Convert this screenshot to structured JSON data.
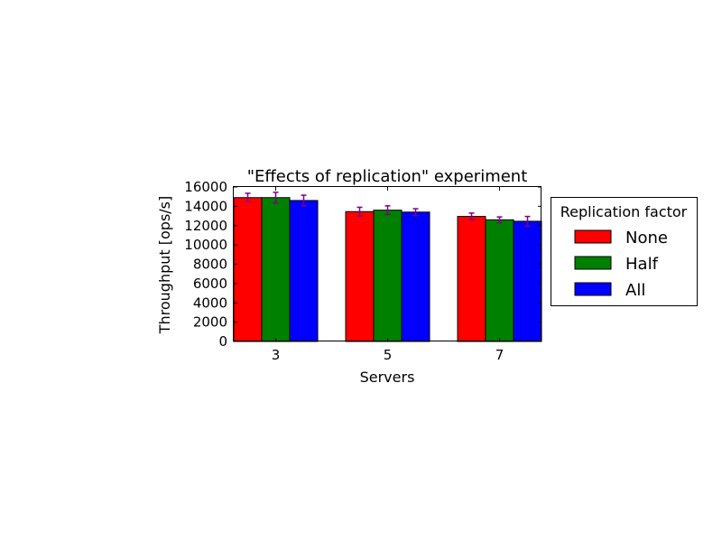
{
  "chart_data": {
    "type": "bar",
    "title": "\"Effects of replication\" experiment",
    "xlabel": "Servers",
    "ylabel": "Throughput [ops/s]",
    "categories": [
      "3",
      "5",
      "7"
    ],
    "ylim": [
      0,
      16000
    ],
    "yticks": [
      0,
      2000,
      4000,
      6000,
      8000,
      10000,
      12000,
      14000,
      16000
    ],
    "grid": false,
    "legend_title": "Replication factor",
    "legend_position": "outside-right",
    "errorbar_color": "#800080",
    "series": [
      {
        "name": "None",
        "color": "#ff0000",
        "values": [
          14900,
          13450,
          12950
        ],
        "errors": [
          450,
          450,
          350
        ]
      },
      {
        "name": "Half",
        "color": "#008000",
        "values": [
          14900,
          13600,
          12600
        ],
        "errors": [
          550,
          450,
          300
        ]
      },
      {
        "name": "All",
        "color": "#0000ff",
        "values": [
          14600,
          13400,
          12450
        ],
        "errors": [
          550,
          350,
          500
        ]
      }
    ]
  }
}
